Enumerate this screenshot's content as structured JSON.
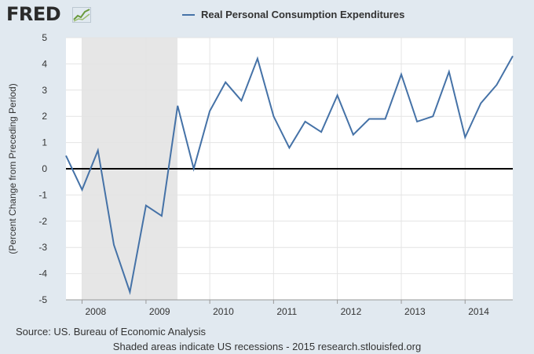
{
  "brand": {
    "logo_text": "FRED",
    "logo_icon": "chart-line-icon"
  },
  "colors": {
    "page_background": "#e1e9f0",
    "plot_background": "#ffffff",
    "series_line": "#4572a7",
    "recession_shade": "#e6e6e6",
    "zero_line": "#000000"
  },
  "chart_data": {
    "type": "line",
    "title": "",
    "xlabel": "",
    "ylabel": "(Percent Change from Preceding Period)",
    "ylim": [
      -5,
      5
    ],
    "yticks": [
      -5,
      -4,
      -3,
      -2,
      -1,
      0,
      1,
      2,
      3,
      4,
      5
    ],
    "xlim": [
      "2007-10-01",
      "2014-10-01"
    ],
    "xticks": [
      "2008",
      "2009",
      "2010",
      "2011",
      "2012",
      "2013",
      "2014"
    ],
    "grid": true,
    "legend_position": "top",
    "recessions": [
      {
        "start": "2008-01-01",
        "end": "2009-06-30"
      }
    ],
    "series": [
      {
        "name": "Real Personal Consumption Expenditures",
        "x": [
          "2007-10-01",
          "2008-01-01",
          "2008-04-01",
          "2008-07-01",
          "2008-10-01",
          "2009-01-01",
          "2009-04-01",
          "2009-07-01",
          "2009-10-01",
          "2010-01-01",
          "2010-04-01",
          "2010-07-01",
          "2010-10-01",
          "2011-01-01",
          "2011-04-01",
          "2011-07-01",
          "2011-10-01",
          "2012-01-01",
          "2012-04-01",
          "2012-07-01",
          "2012-10-01",
          "2013-01-01",
          "2013-04-01",
          "2013-07-01",
          "2013-10-01",
          "2014-01-01",
          "2014-04-01",
          "2014-07-01",
          "2014-10-01"
        ],
        "values": [
          0.5,
          -0.8,
          0.7,
          -2.9,
          -4.7,
          -1.4,
          -1.8,
          2.4,
          0.0,
          2.2,
          3.3,
          2.6,
          4.2,
          2.0,
          0.8,
          1.8,
          1.4,
          2.8,
          1.3,
          1.9,
          1.9,
          3.6,
          1.8,
          2.0,
          3.7,
          1.2,
          2.5,
          3.2,
          4.3
        ]
      }
    ]
  },
  "footer": {
    "source": "Source: US. Bureau of Economic Analysis",
    "note": "Shaded areas indicate US recessions - 2015 research.stlouisfed.org"
  }
}
